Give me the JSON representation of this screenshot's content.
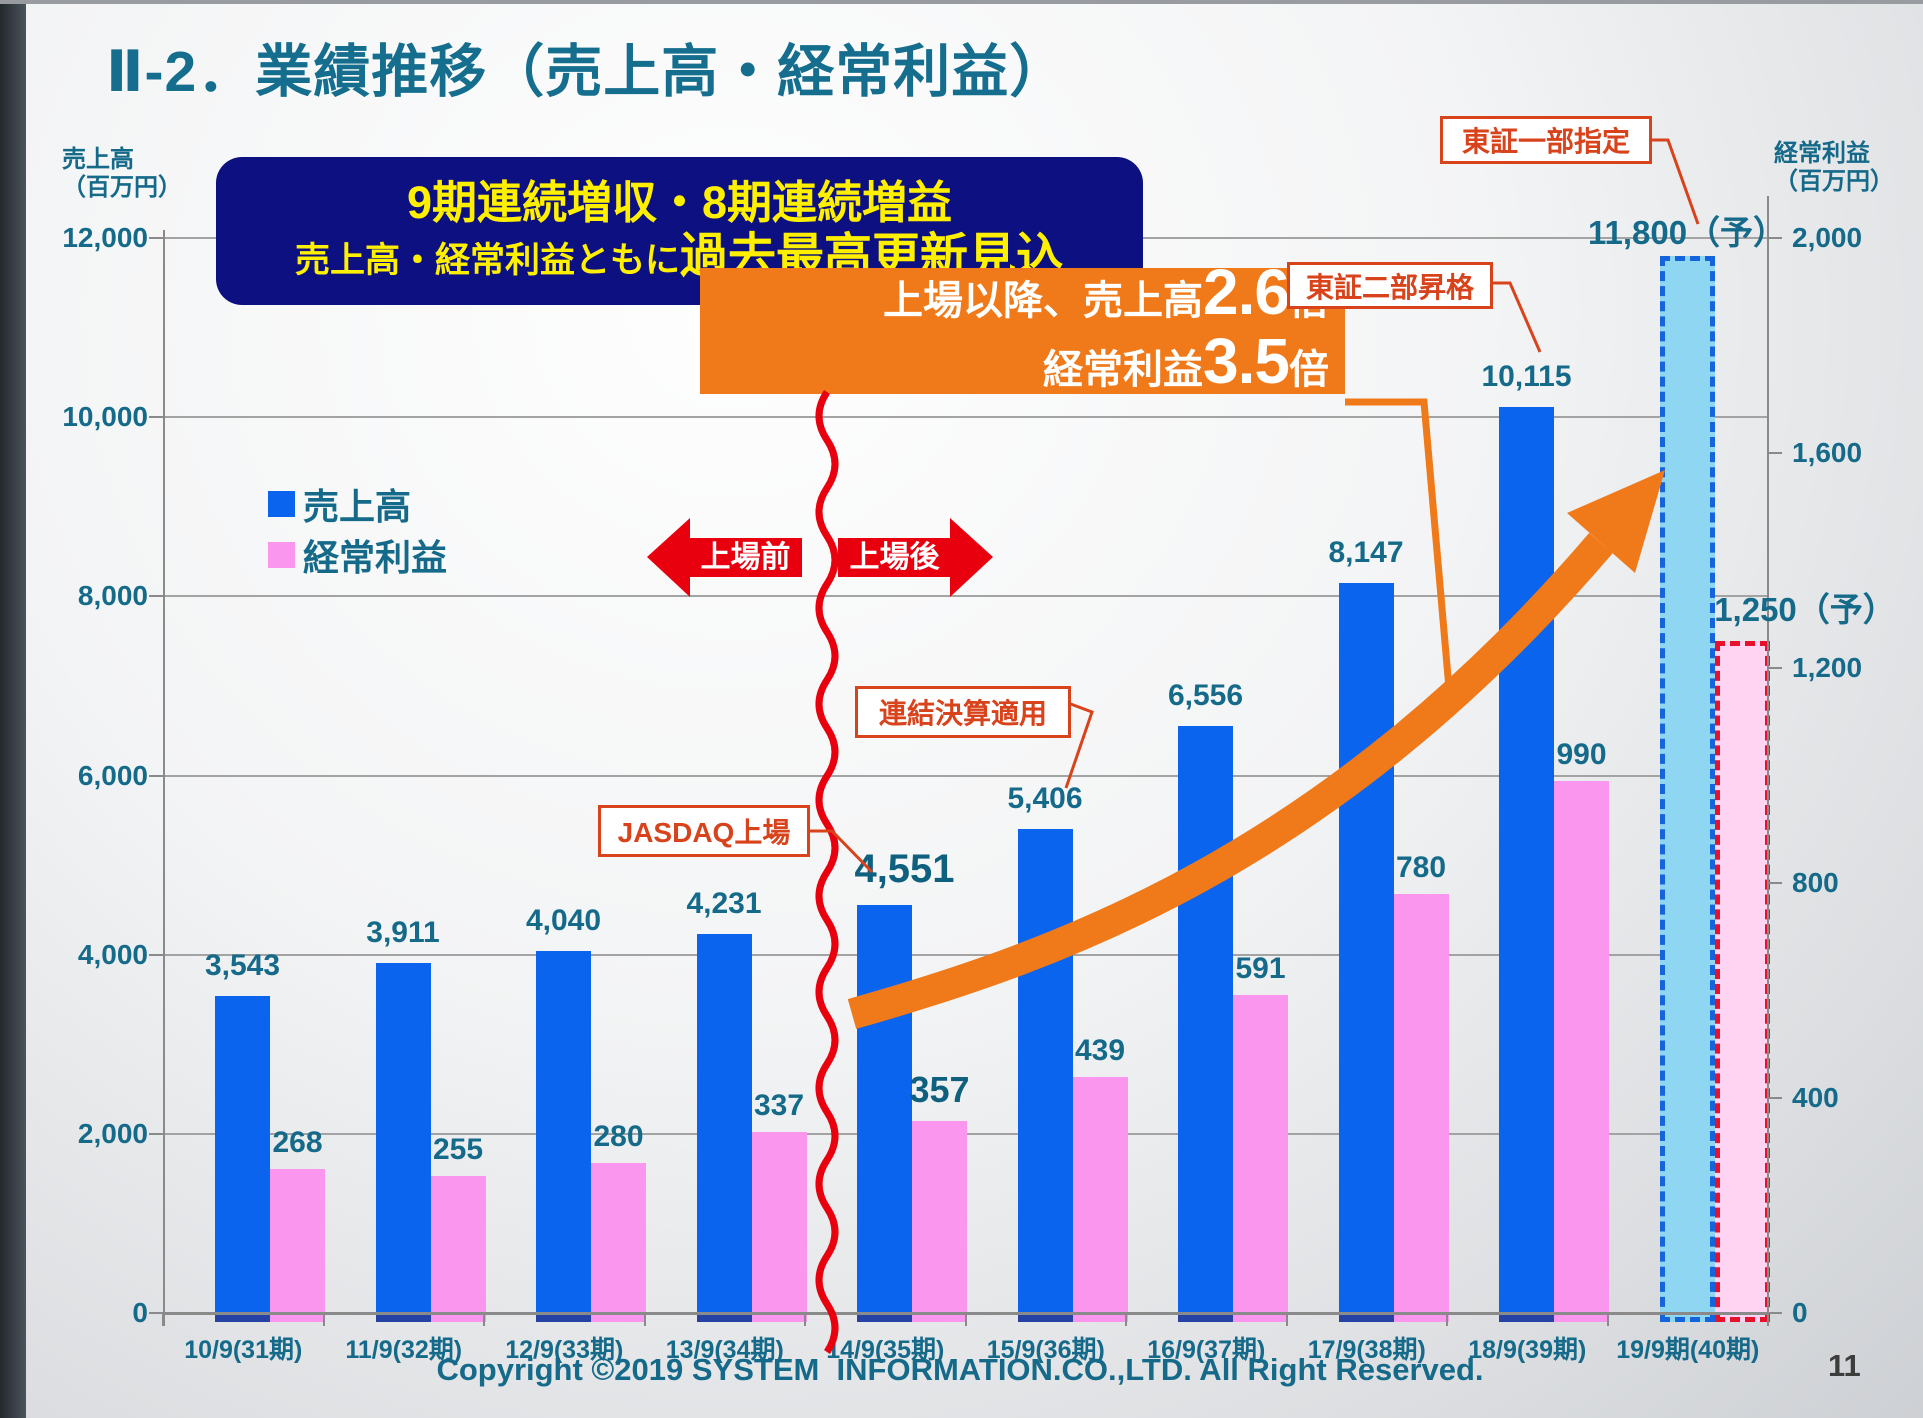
{
  "slide": {
    "title": "Ⅱ-2．業績推移（売上高・経常利益）",
    "page_number": "11",
    "copyright": "Copyright ©2019 SYSTEM  INFORMATION.CO.,LTD. All Right Reserved."
  },
  "banner": {
    "line1": "9期連続増収・8期連続増益",
    "line2_prefix": "売上高・経常利益ともに",
    "line2_emphasis": "過去最高更新見込"
  },
  "growth_box": {
    "line1_text": "上場以降、売上高",
    "line1_big": "2.6",
    "line1_unit": "倍",
    "line2_text": "経常利益",
    "line2_big": "3.5",
    "line2_unit": "倍"
  },
  "annotations": {
    "tosho_ichibu": "東証一部指定",
    "tosho_nibu": "東証二部昇格",
    "renketsu": "連結決算適用",
    "jasdaq": "JASDAQ上場",
    "pre_listing": "上場前",
    "post_listing": "上場後"
  },
  "legend": [
    {
      "label": "売上高"
    },
    {
      "label": "経常利益"
    }
  ],
  "axes": {
    "left": {
      "title_line1": "売上高",
      "title_line2": "（百万円）"
    },
    "right": {
      "title_line1": "経常利益",
      "title_line2": "（百万円）"
    }
  },
  "colors": {
    "sales_bar": "#0B64EE",
    "sales_bar_stub": "#2543A4",
    "profit_bar": "#FB96EF",
    "sales_forecast_fill": "#8FD6F3",
    "sales_forecast_border": "#1464DC",
    "profit_forecast_fill": "#FFD4F3",
    "profit_forecast_border": "#E8112B",
    "orange": "#F07A1A",
    "red": "#E8000F",
    "callout_red": "#D8431C",
    "navy_banner": "#0D1080",
    "yellow_text": "#FFF000",
    "teal_text": "#156A8A",
    "gridline": "#A3A3A3",
    "axis_line": "#8A8A8A"
  },
  "chart_data": {
    "type": "bar",
    "title": "業績推移（売上高・経常利益）",
    "categories": [
      "10/9(31期)",
      "11/9(32期)",
      "12/9(33期)",
      "13/9(34期)",
      "14/9(35期)",
      "15/9(36期)",
      "16/9(37期)",
      "17/9(38期)",
      "18/9(39期)",
      "19/9期(40期)"
    ],
    "series": [
      {
        "name": "売上高",
        "axis": "left",
        "values": [
          3543,
          3911,
          4040,
          4231,
          4551,
          5406,
          6556,
          8147,
          10115,
          11800
        ],
        "labels": [
          "3,543",
          "3,911",
          "4,040",
          "4,231",
          "4,551",
          "5,406",
          "6,556",
          "8,147",
          "10,115",
          "11,800（予）"
        ]
      },
      {
        "name": "経常利益",
        "axis": "right",
        "values": [
          268,
          255,
          280,
          337,
          357,
          439,
          591,
          780,
          990,
          1250
        ],
        "labels": [
          "268",
          "255",
          "280",
          "337",
          "357",
          "439",
          "591",
          "780",
          "990",
          "1,250（予）"
        ]
      }
    ],
    "forecast_index": 9,
    "emphasized_index": 4,
    "left_axis": {
      "label": "売上高（百万円）",
      "min": 0,
      "max": 12000,
      "step": 2000,
      "tick_labels": [
        "0",
        "2,000",
        "4,000",
        "6,000",
        "8,000",
        "10,000",
        "12,000"
      ]
    },
    "right_axis": {
      "label": "経常利益（百万円）",
      "min": 0,
      "max": 2000,
      "step": 400,
      "tick_labels": [
        "0",
        "400",
        "800",
        "1,200",
        "1,600",
        "2,000"
      ]
    },
    "grid": true,
    "legend_position": "upper-left-inside"
  }
}
